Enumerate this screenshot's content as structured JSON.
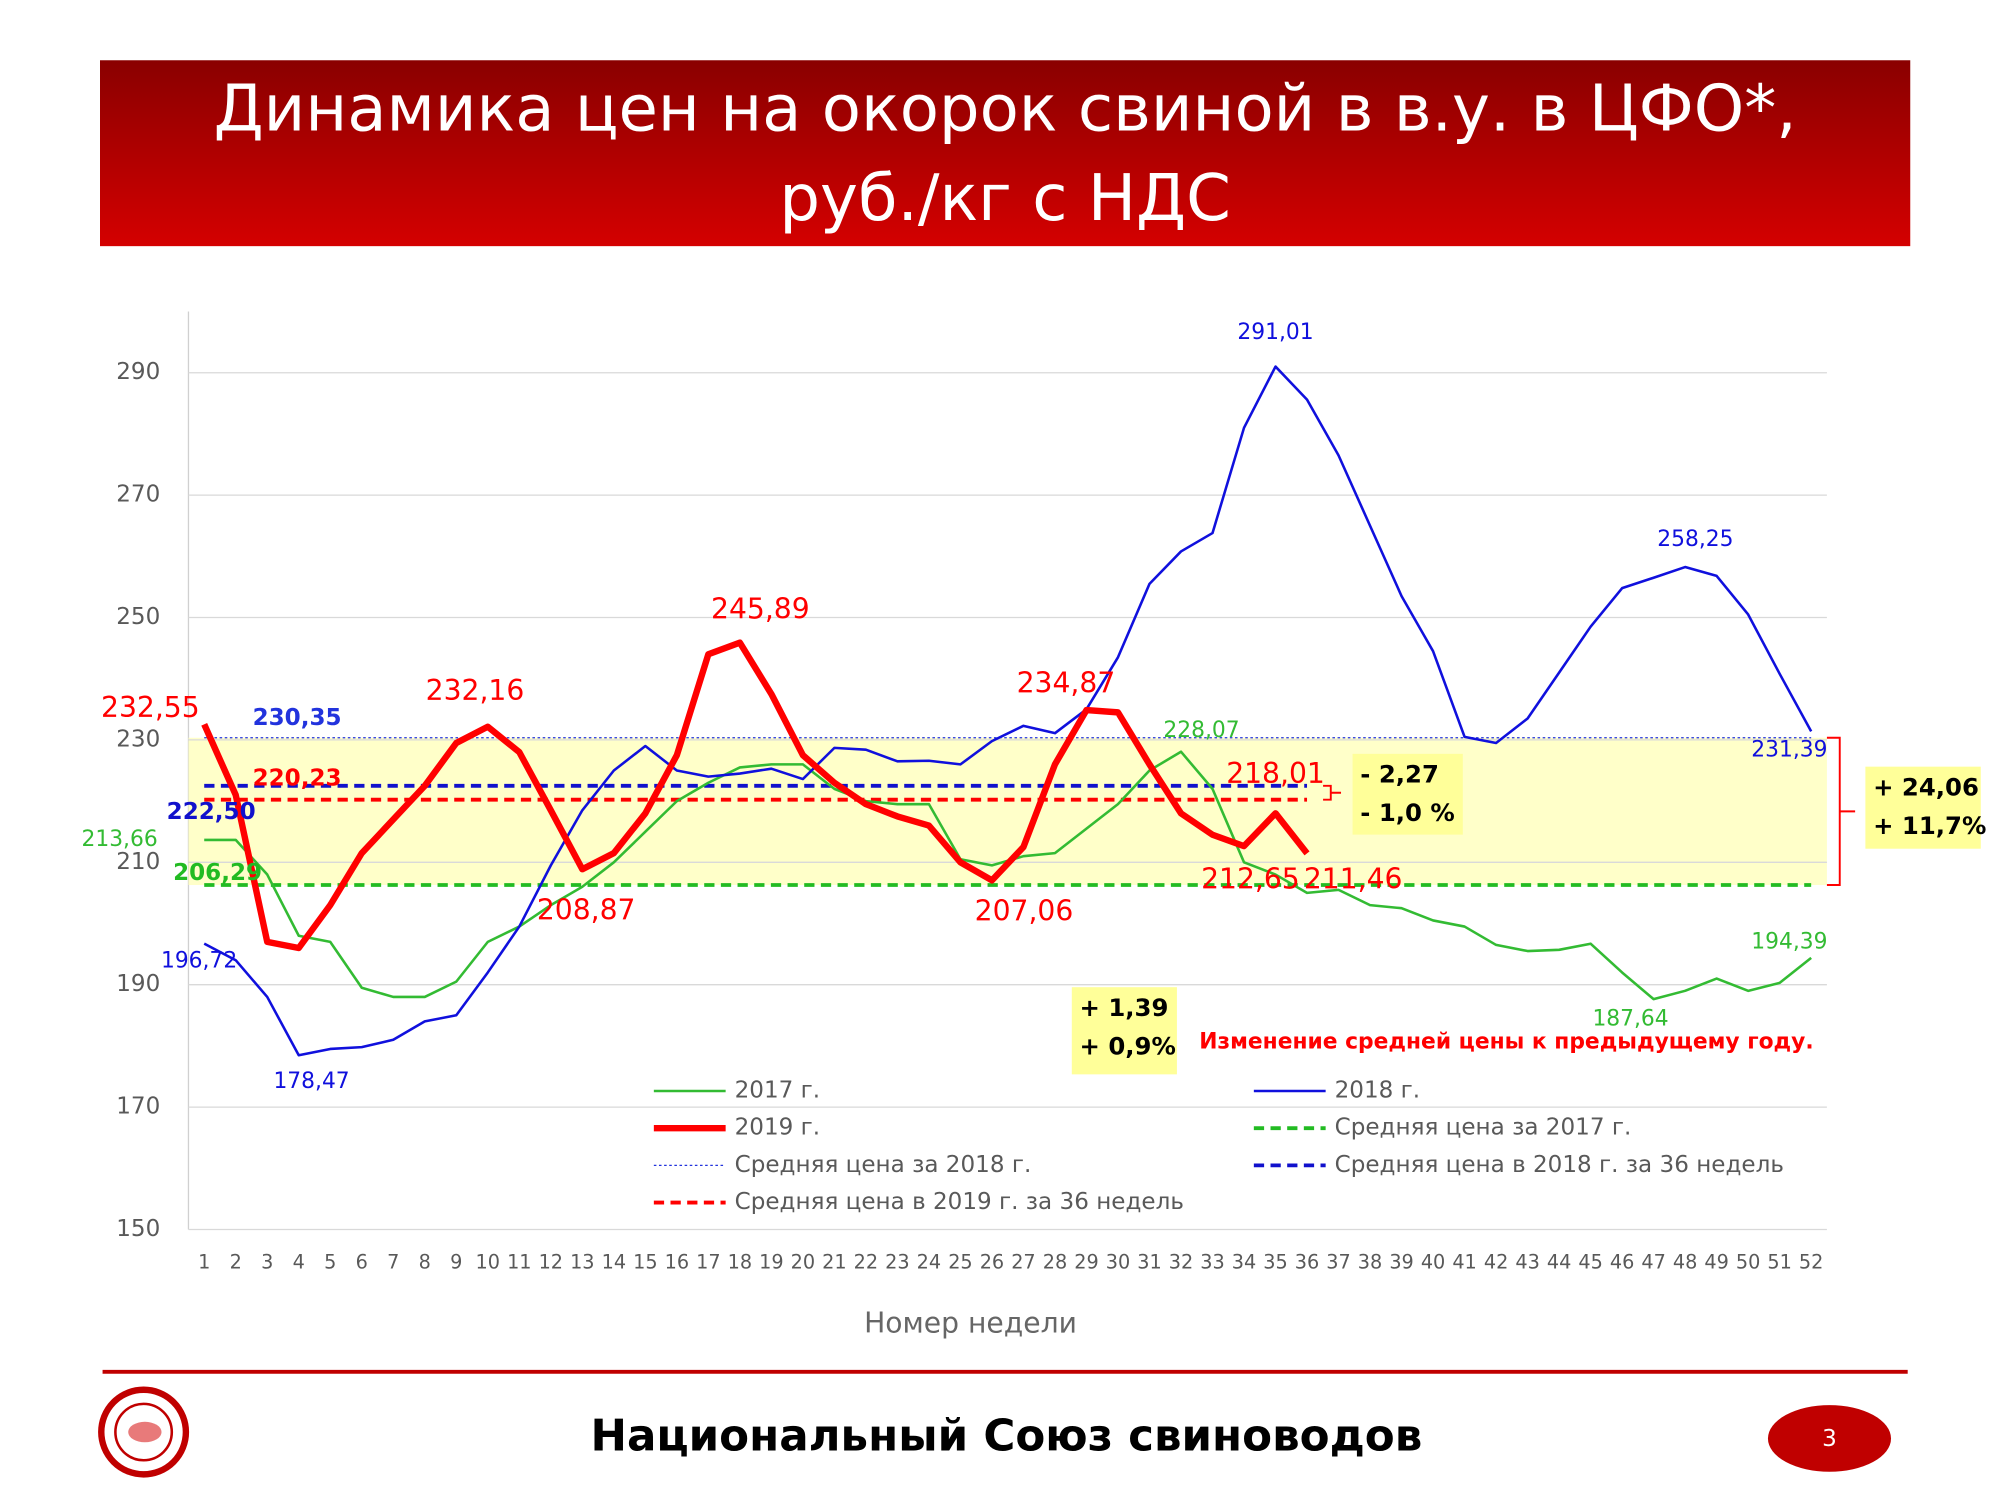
{
  "chart_data": {
    "type": "line",
    "title": [
      "Динамика цен на окорок свиной в в.у. в ЦФО*,",
      "руб./кг с НДС"
    ],
    "x_label": "Номер недели",
    "x": [
      1,
      2,
      3,
      4,
      5,
      6,
      7,
      8,
      9,
      10,
      11,
      12,
      13,
      14,
      15,
      16,
      17,
      18,
      19,
      20,
      21,
      22,
      23,
      24,
      25,
      26,
      27,
      28,
      29,
      30,
      31,
      32,
      33,
      34,
      35,
      36,
      37,
      38,
      39,
      40,
      41,
      42,
      43,
      44,
      45,
      46,
      47,
      48,
      49,
      50,
      51,
      52
    ],
    "xlim": [
      0.5,
      52.5
    ],
    "ylim": [
      150,
      300
    ],
    "yticks": [
      150,
      170,
      190,
      210,
      230,
      250,
      270,
      290
    ],
    "grid": true,
    "series": [
      {
        "name": "2017 г.",
        "color": "#33bb33",
        "width": 2,
        "values": [
          213.66,
          213.66,
          208,
          198,
          197,
          189.5,
          188,
          188,
          190.5,
          197,
          199.5,
          203,
          206,
          210,
          215,
          220,
          223,
          225.5,
          226,
          226,
          222,
          220,
          219.5,
          219.5,
          210.5,
          209.5,
          211,
          211.5,
          215.5,
          219.5,
          225,
          228.07,
          222,
          210,
          208,
          205,
          205.5,
          203,
          202.5,
          200.5,
          199.5,
          196.5,
          195.5,
          195.7,
          196.7,
          192,
          187.64,
          189,
          191,
          189,
          190.3,
          194.39
        ],
        "value_labels": [
          "213,66",
          null,
          null,
          null,
          null,
          null,
          null,
          null,
          null,
          null,
          null,
          null,
          null,
          null,
          null,
          null,
          null,
          null,
          null,
          null,
          null,
          null,
          null,
          null,
          null,
          null,
          null,
          null,
          null,
          null,
          null,
          "228,07",
          null,
          null,
          null,
          null,
          null,
          null,
          null,
          null,
          null,
          null,
          null,
          null,
          null,
          null,
          "187,64",
          null,
          null,
          null,
          null,
          "194,39"
        ]
      },
      {
        "name": "2018 г.",
        "color": "#1010dd",
        "width": 2,
        "values": [
          196.72,
          194,
          188,
          178.47,
          179.5,
          179.8,
          181,
          184,
          185,
          192,
          199.5,
          209.5,
          218.5,
          225,
          229,
          225,
          224,
          224.5,
          225.3,
          223.6,
          228.7,
          228.4,
          226.5,
          226.6,
          226,
          229.8,
          232.3,
          231.1,
          235,
          243.5,
          255.5,
          260.8,
          263.8,
          281,
          291.01,
          285.6,
          276.5,
          265,
          253.5,
          244.5,
          230.5,
          229.5,
          233.5,
          241,
          248.5,
          254.8,
          256.5,
          258.25,
          256.8,
          250.5,
          240.8,
          231.39
        ],
        "value_labels": [
          "196,72",
          null,
          null,
          "178,47",
          null,
          null,
          null,
          null,
          null,
          null,
          null,
          null,
          null,
          null,
          null,
          null,
          null,
          null,
          null,
          null,
          null,
          null,
          null,
          null,
          null,
          null,
          null,
          null,
          null,
          null,
          null,
          null,
          null,
          null,
          "291,01",
          null,
          null,
          null,
          null,
          null,
          null,
          null,
          null,
          null,
          null,
          null,
          null,
          "258,25",
          null,
          null,
          null,
          "231,39"
        ]
      },
      {
        "name": "2019 г.",
        "color": "#ff0000",
        "width": 5,
        "values": [
          232.55,
          221,
          197,
          196,
          203,
          211.5,
          217,
          222.5,
          229.5,
          232.16,
          228,
          218.5,
          208.87,
          211.5,
          218,
          227.5,
          244,
          245.89,
          237.5,
          227.5,
          223,
          219.5,
          217.5,
          216,
          210,
          207.06,
          212.5,
          226,
          234.87,
          234.5,
          226,
          218,
          214.5,
          212.65,
          218.01,
          211.46,
          null,
          null,
          null,
          null,
          null,
          null,
          null,
          null,
          null,
          null,
          null,
          null,
          null,
          null,
          null,
          null
        ],
        "value_labels": [
          "232,55",
          null,
          null,
          null,
          null,
          null,
          null,
          null,
          null,
          "232,16",
          null,
          null,
          "208,87",
          null,
          null,
          null,
          null,
          "245,89",
          null,
          null,
          null,
          null,
          null,
          null,
          null,
          "207,06",
          null,
          null,
          "234,87",
          null,
          null,
          null,
          null,
          "212,65",
          "218,01",
          "211,46",
          null,
          null,
          null,
          null,
          null,
          null,
          null,
          null,
          null,
          null,
          null,
          null,
          null,
          null,
          null,
          null
        ]
      }
    ],
    "average_lines": [
      {
        "name": "Средняя цена за 2017 г.",
        "color": "#22bb22",
        "style": "dashed",
        "value": 206.29,
        "value_label": "206,29",
        "weeks": [
          1,
          52
        ]
      },
      {
        "name": "Средняя цена за 2018 г.",
        "color": "#2233dd",
        "style": "dotted",
        "value": 230.35,
        "value_label": "230,35",
        "weeks": [
          1,
          52
        ]
      },
      {
        "name": "Средняя цена в 2018 г. за 36 недель",
        "color": "#1111cc",
        "style": "dashed",
        "value": 222.5,
        "value_label": "222,50",
        "weeks": [
          1,
          36
        ]
      },
      {
        "name": "Средняя цена в 2019 г. за 36 недель",
        "color": "#ff0000",
        "style": "dashed",
        "value": 220.23,
        "value_label": "220,23",
        "weeks": [
          1,
          36
        ]
      }
    ],
    "annotations": [
      {
        "lines": [
          "- 2,27",
          "- 1,0 %"
        ]
      },
      {
        "lines": [
          "+ 24,06",
          "+ 11,7%"
        ]
      },
      {
        "lines": [
          "+ 1,39",
          "+ 0,9%"
        ]
      }
    ],
    "note": "Изменение средней цены к предыдущему году."
  },
  "footer": {
    "text": "Национальный Союз свиноводов",
    "page": "3"
  }
}
